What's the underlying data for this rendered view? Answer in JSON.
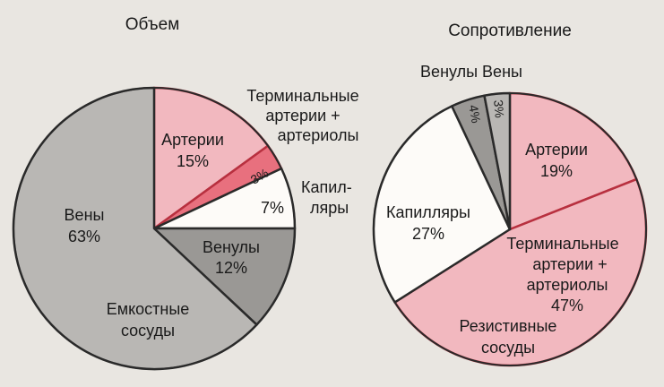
{
  "chart_data": [
    {
      "type": "pie",
      "title": "Объем",
      "slices": [
        {
          "label": "Артерии",
          "value": 15,
          "value_label": "15%",
          "color": "#f2b8bf"
        },
        {
          "label": "Терминальные артерии + артериолы",
          "value": 3,
          "value_label": "3%",
          "color": "#e8707e"
        },
        {
          "label": "Капилляры",
          "value": 7,
          "value_label": "7%",
          "color": "#fdfbf8"
        },
        {
          "label": "Венулы",
          "value": 12,
          "value_label": "12%",
          "color": "#9a9895"
        },
        {
          "label": "Вены",
          "value": 63,
          "value_label": "63%",
          "color": "#b9b7b4"
        }
      ],
      "annotations": [
        {
          "text": "Емкостные сосуды"
        }
      ],
      "label_lines": {
        "arteries": "Артерии",
        "term1": "Терминальные",
        "term2": "артерии +",
        "term3": "артериолы",
        "cap1": "Капил-",
        "cap2": "ляры",
        "venules": "Венулы",
        "veins": "Вены",
        "cap_group1": "Емкостные",
        "cap_group2": "сосуды"
      }
    },
    {
      "type": "pie",
      "title": "Сопротивление",
      "slices": [
        {
          "label": "Артерии",
          "value": 19,
          "value_label": "19%",
          "color": "#f2b8bf"
        },
        {
          "label": "Терминальные артерии + артериолы",
          "value": 47,
          "value_label": "47%",
          "color": "#f2b8bf"
        },
        {
          "label": "Капилляры",
          "value": 27,
          "value_label": "27%",
          "color": "#fdfbf8"
        },
        {
          "label": "Венулы",
          "value": 4,
          "value_label": "4%",
          "color": "#9a9895"
        },
        {
          "label": "Вены",
          "value": 3,
          "value_label": "3%",
          "color": "#b9b7b4"
        }
      ],
      "annotations": [
        {
          "text": "Резистивные сосуды"
        }
      ],
      "label_lines": {
        "header": "Венулы Вены",
        "arteries": "Артерии",
        "term1": "Терминальные",
        "term2": "артерии +",
        "term3": "артериолы",
        "capillaries": "Капилляры",
        "res1": "Резистивные",
        "res2": "сосуды"
      }
    }
  ]
}
